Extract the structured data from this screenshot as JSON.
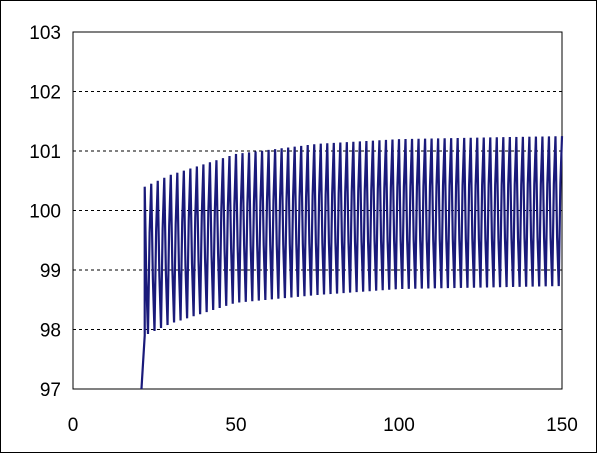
{
  "chart_data": {
    "type": "line",
    "title": "",
    "xlabel": "",
    "ylabel": "",
    "xlim": [
      0,
      150
    ],
    "ylim": [
      97,
      103
    ],
    "x_ticks": [
      "0",
      "50",
      "100",
      "150"
    ],
    "y_ticks": [
      "97",
      "98",
      "99",
      "100",
      "101",
      "102",
      "103"
    ],
    "grid": {
      "horizontal": true,
      "style": "dashed",
      "vertical": false
    },
    "legend": "none",
    "series": [
      {
        "color": "#1a1a7a",
        "description_points": {
          "start_x": 21,
          "start_y": 97,
          "oscillation_start_x": 22,
          "end_x": 150,
          "upper_envelope": [
            [
              22,
              100.4
            ],
            [
              30,
              100.6
            ],
            [
              50,
              100.95
            ],
            [
              75,
              101.12
            ],
            [
              100,
              101.2
            ],
            [
              150,
              101.25
            ]
          ],
          "lower_envelope": [
            [
              22,
              97.9
            ],
            [
              30,
              98.1
            ],
            [
              50,
              98.45
            ],
            [
              75,
              98.58
            ],
            [
              100,
              98.68
            ],
            [
              150,
              98.73
            ]
          ],
          "inner_upper": [
            [
              22,
              99.6
            ],
            [
              50,
              100.1
            ],
            [
              100,
              100.4
            ],
            [
              150,
              100.45
            ]
          ],
          "inner_lower": [
            [
              22,
              98.8
            ],
            [
              50,
              99.4
            ],
            [
              100,
              99.5
            ],
            [
              150,
              99.55
            ]
          ]
        }
      }
    ]
  }
}
